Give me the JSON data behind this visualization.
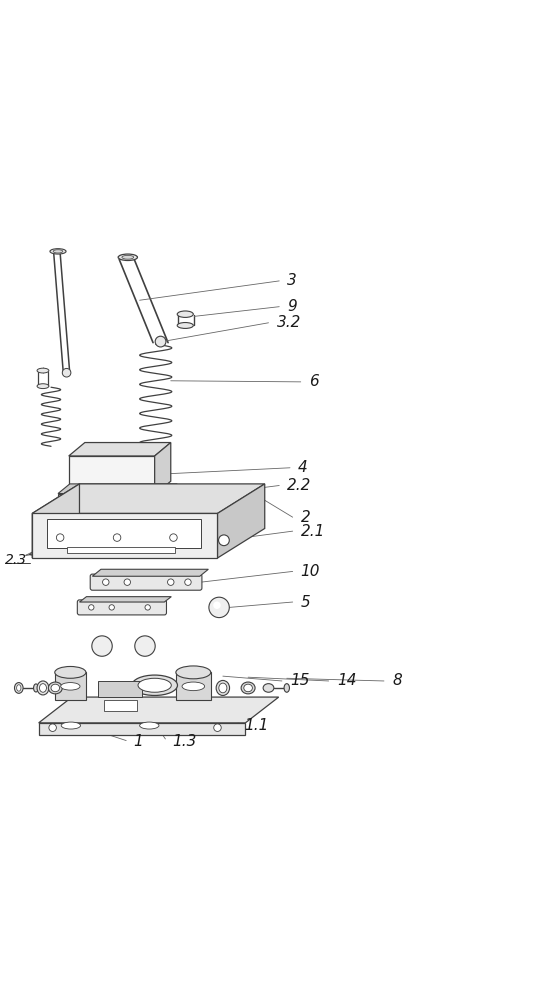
{
  "bg_color": "#ffffff",
  "line_color": "#404040",
  "label_color": "#1a1a1a",
  "fig_width": 5.37,
  "fig_height": 10.0,
  "dpi": 100
}
